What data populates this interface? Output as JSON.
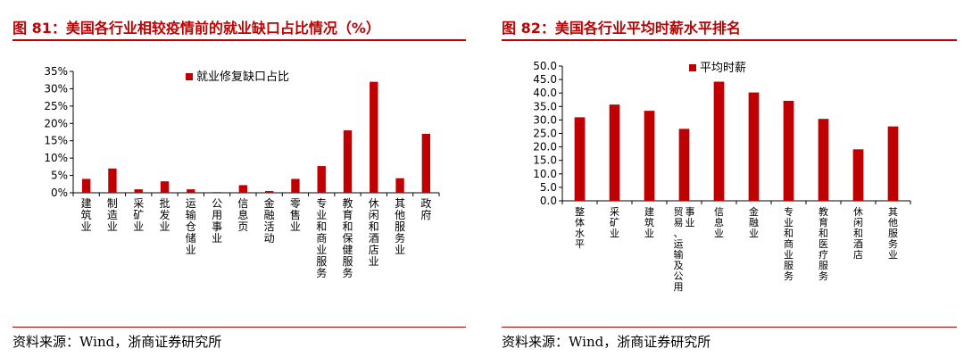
{
  "left": {
    "title": "图 81：美国各行业相较疫情前的就业缺口占比情况（%）",
    "source": "资料来源：Wind，浙商证券研究所"
  },
  "right": {
    "title": "图 82：美国各行业平均时薪水平排名",
    "source": "资料来源：Wind，浙商证券研究所"
  },
  "colors": {
    "bar": "#c00000",
    "title": "#c00000"
  },
  "chart_data": [
    {
      "type": "bar",
      "title": "",
      "categories": [
        "建筑业",
        "制造业",
        "采矿业",
        "批发业",
        "运输仓储业",
        "公用事业",
        "信息页",
        "金融活动",
        "零售业",
        "专业和商业服务",
        "教育和保健服务",
        "休闲和酒店业",
        "其他服务业",
        "政府"
      ],
      "series": [
        {
          "name": "就业修复缺口占比",
          "values": [
            4.0,
            7.0,
            1.0,
            3.3,
            1.0,
            0.2,
            2.2,
            0.5,
            4.0,
            7.7,
            18.0,
            32.0,
            4.2,
            17.0
          ]
        }
      ],
      "xlabel": "",
      "ylabel": "",
      "ylim": [
        0,
        35
      ],
      "yticks": [
        "0%",
        "5%",
        "10%",
        "15%",
        "20%",
        "25%",
        "30%",
        "35%"
      ],
      "legend": "top-center",
      "grid": false
    },
    {
      "type": "bar",
      "title": "",
      "categories": [
        "整体水平",
        "采矿业",
        "建筑业",
        "贸易、运输及公用事业",
        "信息业",
        "金融业",
        "专业和商业服务",
        "教育和医疗服务",
        "休闲和酒店",
        "其他服务业"
      ],
      "series": [
        {
          "name": "平均时薪",
          "values": [
            31.0,
            35.7,
            33.4,
            26.7,
            44.2,
            40.2,
            37.1,
            30.4,
            19.1,
            27.6
          ]
        }
      ],
      "xlabel": "",
      "ylabel": "",
      "ylim": [
        0,
        50
      ],
      "yticks": [
        "0.0",
        "5.0",
        "10.0",
        "15.0",
        "20.0",
        "25.0",
        "30.0",
        "35.0",
        "40.0",
        "45.0",
        "50.0"
      ],
      "legend": "top-center",
      "grid": false
    }
  ]
}
